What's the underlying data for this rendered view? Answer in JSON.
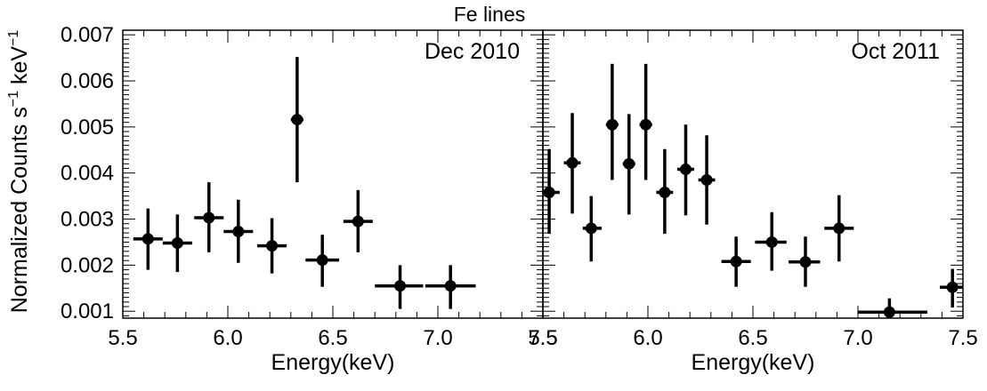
{
  "chart_data": {
    "type": "scatter",
    "title": "Fe lines",
    "ylabel_parts": [
      "Normalized Counts s",
      "−1",
      " keV",
      "−1"
    ],
    "ylim": [
      0.00085,
      0.0071
    ],
    "yticks": [
      0.001,
      0.002,
      0.003,
      0.004,
      0.005,
      0.006,
      0.007
    ],
    "ytick_labels": [
      "0.001",
      "0.002",
      "0.003",
      "0.004",
      "0.005",
      "0.006",
      "0.007"
    ],
    "color": "#000000",
    "panels": [
      {
        "label": "Dec 2010",
        "xlabel": "Energy(keV)",
        "xlim": [
          5.5,
          7.5
        ],
        "xticks": [
          5.5,
          6.0,
          6.5,
          7.0,
          7.5
        ],
        "xtick_labels": [
          "5.5",
          "6.0",
          "6.5",
          "7.0",
          "7.5"
        ],
        "points": [
          {
            "x": 5.62,
            "y": 0.00257,
            "xlo": 5.55,
            "xhi": 5.69,
            "ylo": 0.0019,
            "yhi": 0.00323
          },
          {
            "x": 5.76,
            "y": 0.00248,
            "xlo": 5.69,
            "xhi": 5.83,
            "ylo": 0.00185,
            "yhi": 0.0031
          },
          {
            "x": 5.91,
            "y": 0.00303,
            "xlo": 5.84,
            "xhi": 5.98,
            "ylo": 0.00228,
            "yhi": 0.0038
          },
          {
            "x": 6.05,
            "y": 0.00273,
            "xlo": 5.98,
            "xhi": 6.12,
            "ylo": 0.00205,
            "yhi": 0.00342
          },
          {
            "x": 6.21,
            "y": 0.00242,
            "xlo": 6.14,
            "xhi": 6.28,
            "ylo": 0.00182,
            "yhi": 0.00302
          },
          {
            "x": 6.33,
            "y": 0.00516,
            "xlo": 6.3,
            "xhi": 6.36,
            "ylo": 0.0038,
            "yhi": 0.00652
          },
          {
            "x": 6.45,
            "y": 0.00211,
            "xlo": 6.37,
            "xhi": 6.53,
            "ylo": 0.00153,
            "yhi": 0.00266
          },
          {
            "x": 6.62,
            "y": 0.00295,
            "xlo": 6.55,
            "xhi": 6.69,
            "ylo": 0.00228,
            "yhi": 0.00363
          },
          {
            "x": 6.82,
            "y": 0.00155,
            "xlo": 6.7,
            "xhi": 6.93,
            "ylo": 0.00105,
            "yhi": 0.002
          },
          {
            "x": 7.06,
            "y": 0.00155,
            "xlo": 6.94,
            "xhi": 7.18,
            "ylo": 0.00105,
            "yhi": 0.002
          }
        ]
      },
      {
        "label": "Oct 2011",
        "xlabel": "Energy(keV)",
        "xlim": [
          5.5,
          7.5
        ],
        "xticks": [
          5.5,
          6.0,
          6.5,
          7.0,
          7.5
        ],
        "xtick_labels": [
          "5.5",
          "6.0",
          "6.5",
          "7.0",
          "7.5"
        ],
        "points": [
          {
            "x": 5.53,
            "y": 0.00358,
            "xlo": 5.5,
            "xhi": 5.58,
            "ylo": 0.00268,
            "yhi": 0.00452
          },
          {
            "x": 5.64,
            "y": 0.00422,
            "xlo": 5.6,
            "xhi": 5.68,
            "ylo": 0.00312,
            "yhi": 0.0053
          },
          {
            "x": 5.73,
            "y": 0.0028,
            "xlo": 5.69,
            "xhi": 5.78,
            "ylo": 0.00208,
            "yhi": 0.0035
          },
          {
            "x": 5.83,
            "y": 0.00505,
            "xlo": 5.8,
            "xhi": 5.86,
            "ylo": 0.00385,
            "yhi": 0.00637
          },
          {
            "x": 5.91,
            "y": 0.0042,
            "xlo": 5.88,
            "xhi": 5.94,
            "ylo": 0.0031,
            "yhi": 0.00528
          },
          {
            "x": 5.99,
            "y": 0.00505,
            "xlo": 5.96,
            "xhi": 6.02,
            "ylo": 0.00385,
            "yhi": 0.00637
          },
          {
            "x": 6.08,
            "y": 0.00358,
            "xlo": 6.04,
            "xhi": 6.12,
            "ylo": 0.00268,
            "yhi": 0.00452
          },
          {
            "x": 6.18,
            "y": 0.00408,
            "xlo": 6.14,
            "xhi": 6.22,
            "ylo": 0.00308,
            "yhi": 0.00505
          },
          {
            "x": 6.28,
            "y": 0.00385,
            "xlo": 6.24,
            "xhi": 6.32,
            "ylo": 0.00288,
            "yhi": 0.00482
          },
          {
            "x": 6.42,
            "y": 0.00208,
            "xlo": 6.35,
            "xhi": 6.49,
            "ylo": 0.00153,
            "yhi": 0.00262
          },
          {
            "x": 6.59,
            "y": 0.0025,
            "xlo": 6.51,
            "xhi": 6.66,
            "ylo": 0.00188,
            "yhi": 0.00315
          },
          {
            "x": 6.75,
            "y": 0.00207,
            "xlo": 6.67,
            "xhi": 6.82,
            "ylo": 0.00153,
            "yhi": 0.00262
          },
          {
            "x": 6.91,
            "y": 0.0028,
            "xlo": 6.84,
            "xhi": 6.98,
            "ylo": 0.00208,
            "yhi": 0.00352
          },
          {
            "x": 7.15,
            "y": 0.00098,
            "xlo": 7.0,
            "xhi": 7.33,
            "ylo": 0.0009,
            "yhi": 0.00128
          },
          {
            "x": 7.45,
            "y": 0.00152,
            "xlo": 7.39,
            "xhi": 7.5,
            "ylo": 0.00108,
            "yhi": 0.00192
          }
        ]
      }
    ]
  }
}
